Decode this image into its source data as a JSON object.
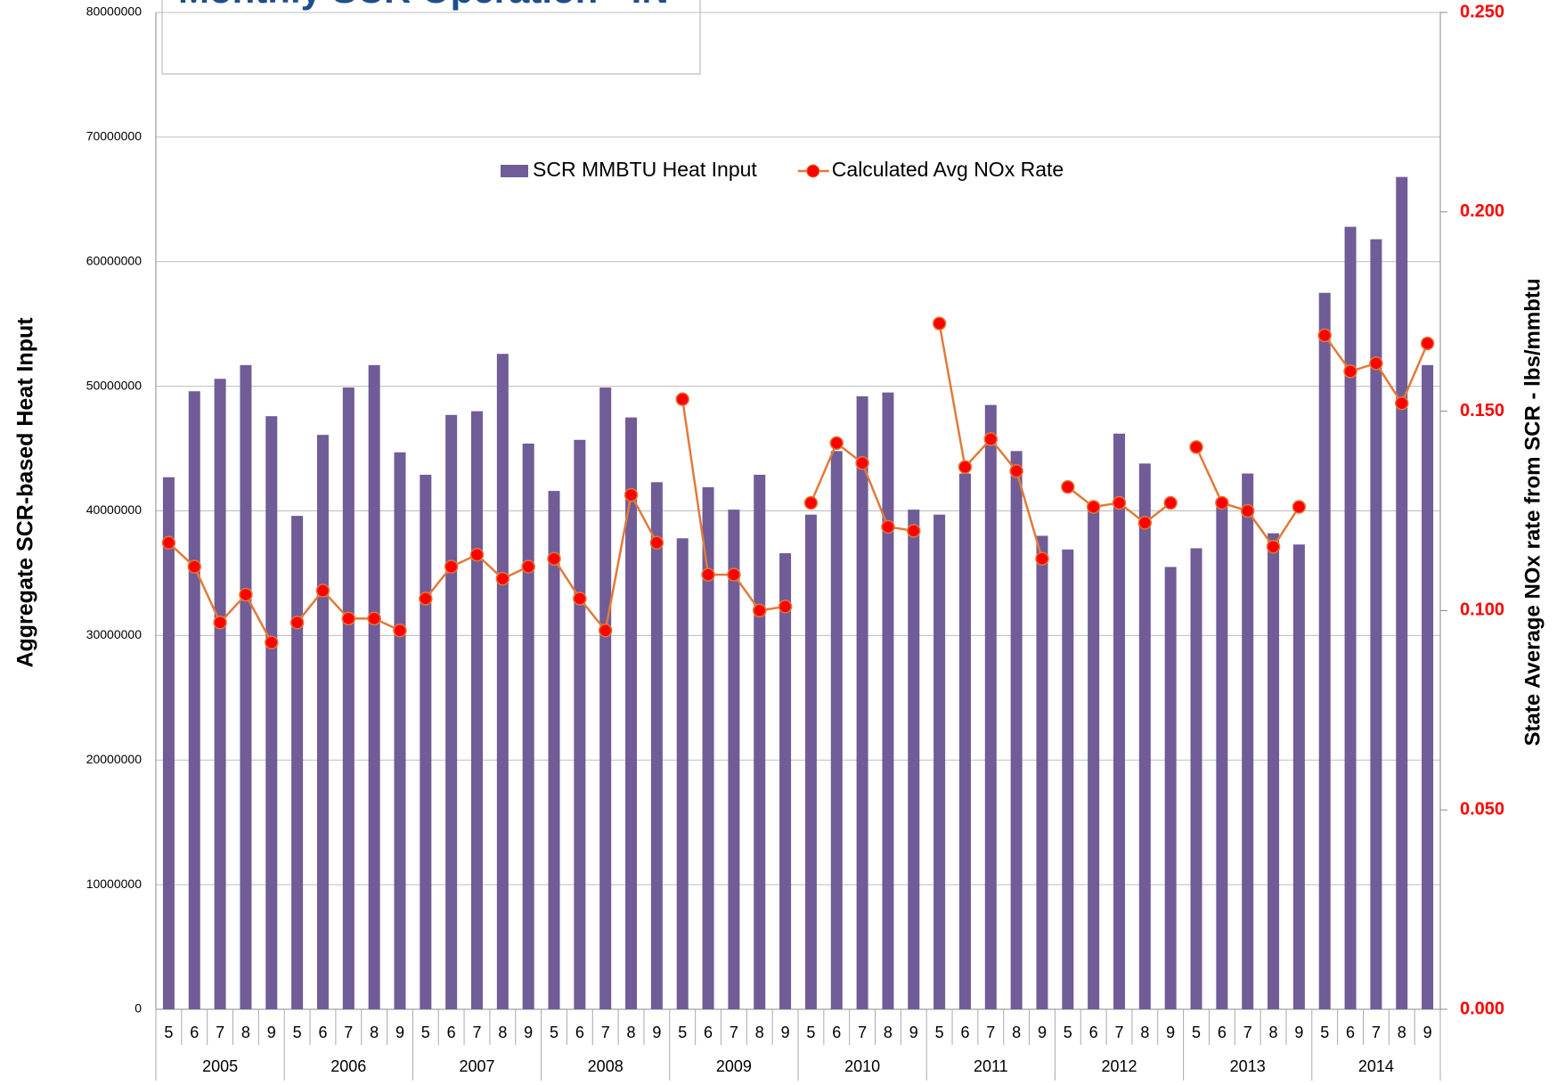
{
  "chart_data": {
    "type": "bar-line",
    "title": "Monthly SCR Operation - IN",
    "y_label": "Aggregate SCR-based Heat Input",
    "y2_label": "State Average NOx rate from SCR - lbs/mmbtu",
    "groups": [
      "2005",
      "2006",
      "2007",
      "2008",
      "2009",
      "2010",
      "2011",
      "2012",
      "2013",
      "2014"
    ],
    "categories": [
      "5",
      "6",
      "7",
      "8",
      "9",
      "5",
      "6",
      "7",
      "8",
      "9",
      "5",
      "6",
      "7",
      "8",
      "9",
      "5",
      "6",
      "7",
      "8",
      "9",
      "5",
      "6",
      "7",
      "8",
      "9",
      "5",
      "6",
      "7",
      "8",
      "9",
      "5",
      "6",
      "7",
      "8",
      "9",
      "5",
      "6",
      "7",
      "8",
      "9",
      "5",
      "6",
      "7",
      "8",
      "9",
      "5",
      "6",
      "7",
      "8",
      "9"
    ],
    "ylim": [
      0,
      80000000
    ],
    "yticks": [
      0,
      10000000,
      20000000,
      30000000,
      40000000,
      50000000,
      60000000,
      70000000,
      80000000
    ],
    "y2lim": [
      0,
      0.25
    ],
    "y2ticks": [
      {
        "value": 0,
        "label": "0.000"
      },
      {
        "value": 0.05,
        "label": "0.050"
      },
      {
        "value": 0.1,
        "label": "0.100"
      },
      {
        "value": 0.15,
        "label": "0.150"
      },
      {
        "value": 0.2,
        "label": "0.200"
      },
      {
        "value": 0.25,
        "label": "0.250"
      }
    ],
    "grid": true,
    "legend": "top",
    "series": [
      {
        "name": "SCR MMBTU Heat Input",
        "type": "bar",
        "color": "#705c96",
        "values": [
          42700000,
          49600000,
          50600000,
          51700000,
          47600000,
          39600000,
          46100000,
          49900000,
          51700000,
          44700000,
          42900000,
          47700000,
          48000000,
          52600000,
          45400000,
          41600000,
          45700000,
          49900000,
          47500000,
          42300000,
          37800000,
          41900000,
          40100000,
          42900000,
          36600000,
          39700000,
          44800000,
          49200000,
          49500000,
          40100000,
          39700000,
          43000000,
          48500000,
          44800000,
          38000000,
          36900000,
          40700000,
          46200000,
          43800000,
          35500000,
          37000000,
          41000000,
          43000000,
          38200000,
          37300000,
          57500000,
          62800000,
          61800000,
          66800000,
          51700000
        ]
      },
      {
        "name": "Calculated Avg NOx Rate",
        "type": "line",
        "axis": "y2",
        "color": "#e07b39",
        "marker_color": "#ff0000",
        "values": [
          0.117,
          0.111,
          0.097,
          0.104,
          0.092,
          0.097,
          0.105,
          0.098,
          0.098,
          0.095,
          0.103,
          0.111,
          0.114,
          0.108,
          0.111,
          0.113,
          0.103,
          0.095,
          0.129,
          0.117,
          0.153,
          0.109,
          0.109,
          0.1,
          0.101,
          0.127,
          0.142,
          0.137,
          0.121,
          0.12,
          0.172,
          0.136,
          0.143,
          0.135,
          0.113,
          0.131,
          0.126,
          0.127,
          0.122,
          0.127,
          0.141,
          0.127,
          0.125,
          0.116,
          0.126,
          0.169,
          0.16,
          0.162,
          0.152,
          0.167
        ]
      }
    ]
  }
}
